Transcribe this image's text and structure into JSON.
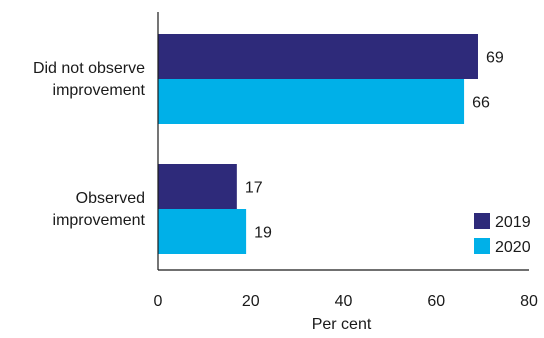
{
  "chart_data": {
    "type": "bar",
    "orientation": "horizontal",
    "categories": [
      [
        "Did not observe",
        "improvement"
      ],
      [
        "Observed",
        "improvement"
      ]
    ],
    "series": [
      {
        "name": "2019",
        "color": "#2e2a7a",
        "values": [
          69,
          17
        ]
      },
      {
        "name": "2020",
        "color": "#00b0e8",
        "values": [
          66,
          19
        ]
      }
    ],
    "xlabel": "Per cent",
    "xlim": [
      0,
      80
    ],
    "xticks": [
      0,
      20,
      40,
      60,
      80
    ],
    "grid": false,
    "legend_position": "bottom-right"
  }
}
